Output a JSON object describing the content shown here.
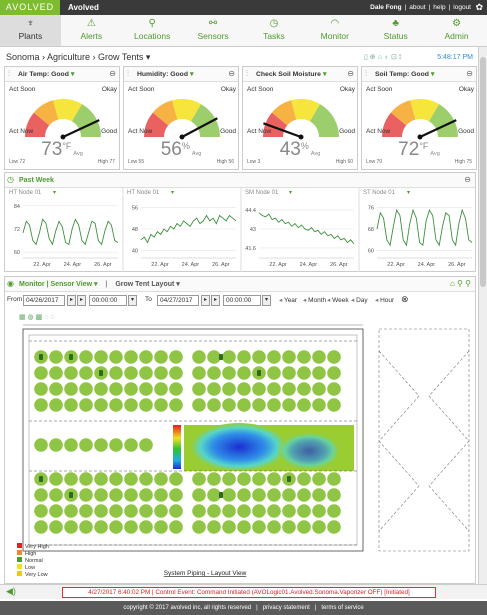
{
  "header": {
    "logo": "AVOLVED",
    "app": "Avolved",
    "user": "Dale Fong",
    "links": [
      "about",
      "help",
      "logout"
    ]
  },
  "nav": [
    "Plants",
    "Alerts",
    "Locations",
    "Sensors",
    "Tasks",
    "Monitor",
    "Status",
    "Admin"
  ],
  "breadcrumb": {
    "path": "Sonoma › Agriculture › Grow Tents ▾",
    "time": "5:48:17 PM"
  },
  "gauge_labels": [
    "Act Soon",
    "Okay",
    "Act Now",
    "Good"
  ],
  "gauges": [
    {
      "title": "Air Temp: Good",
      "value": 73,
      "unit": "°F",
      "avg": "Avg",
      "low": "Low 72",
      "high": "High 77"
    },
    {
      "title": "Humidity: Good",
      "value": 56,
      "unit": "%",
      "avg": "Avg",
      "low": "Low 55",
      "high": "High 56"
    },
    {
      "title": "Check Soil Moisture",
      "value": 43,
      "unit": "%",
      "avg": "Avg",
      "low": "Low 3",
      "high": "High 60"
    },
    {
      "title": "Soil Temp: Good",
      "value": 72,
      "unit": "°F",
      "avg": "Avg",
      "low": "Low 70",
      "high": "High 75"
    }
  ],
  "past_week": {
    "title": "Past Week",
    "charts": [
      {
        "type": "line",
        "title": "HT Node 01",
        "color": "#3d8f3d",
        "ylim": [
          58,
          86
        ],
        "yticks": [
          60,
          72,
          84
        ],
        "x_labels": [
          "22. Apr",
          "24. Apr",
          "26. Apr"
        ],
        "values": [
          70,
          76,
          74,
          66,
          64,
          70,
          77,
          75,
          67,
          64,
          71,
          76,
          73,
          65,
          64,
          72,
          77,
          74,
          66,
          64,
          70,
          76,
          75,
          66,
          64,
          71,
          76,
          74,
          66,
          65
        ]
      },
      {
        "type": "line",
        "title": "HT Node 01",
        "color": "#3d8f3d",
        "ylim": [
          38,
          58
        ],
        "yticks": [
          40,
          48,
          56
        ],
        "x_labels": [
          "22. Apr",
          "24. Apr",
          "26. Apr"
        ],
        "values": [
          44,
          45,
          43,
          46,
          45,
          47,
          46,
          48,
          47,
          49,
          48,
          50,
          49,
          51,
          50,
          49,
          51,
          52,
          50,
          51,
          53,
          51,
          52,
          50,
          53,
          52,
          51,
          53,
          52,
          51
        ]
      },
      {
        "type": "line",
        "title": "SM Node 01",
        "color": "#3d8f3d",
        "ylim": [
          41,
          45
        ],
        "yticks": [
          41.6,
          43,
          44.4
        ],
        "x_labels": [
          "22. Apr",
          "24. Apr",
          "26. Apr"
        ],
        "values": [
          44.2,
          44,
          43.9,
          44.1,
          43.7,
          43.8,
          43.5,
          43.7,
          43.4,
          43.5,
          43.2,
          43.4,
          43.1,
          43.3,
          43,
          42.9,
          43.1,
          42.8,
          42.9,
          42.6,
          42.8,
          42.5,
          42.6,
          42.3,
          42.5,
          42.2,
          42.3,
          42,
          42.2,
          41.9
        ]
      },
      {
        "type": "line",
        "title": "ST Node 01",
        "color": "#3d8f3d",
        "ylim": [
          58,
          78
        ],
        "yticks": [
          60,
          68,
          76
        ],
        "x_labels": [
          "22. Apr",
          "24. Apr",
          "26. Apr"
        ],
        "values": [
          68,
          74,
          72,
          64,
          62,
          69,
          75,
          73,
          64,
          62,
          70,
          75,
          72,
          63,
          62,
          71,
          75,
          73,
          64,
          62,
          69,
          74,
          73,
          64,
          62,
          70,
          75,
          72,
          64,
          63
        ]
      }
    ]
  },
  "monitor": {
    "title": "Monitor | Sensor View ▾",
    "layout": "Grow Tent Layout ▾",
    "from": "From",
    "from_date": "04/26/2017",
    "from_time": "00:00:00",
    "to": "To",
    "to_date": "04/27/2017",
    "to_time": "00:00:00",
    "ranges": [
      "Year",
      "Month",
      "Week",
      "Day",
      "Hour"
    ],
    "legend": [
      {
        "label": "Very High",
        "color": "#d9261c"
      },
      {
        "label": "High",
        "color": "#f08a24"
      },
      {
        "label": "Normal",
        "color": "#4f9a2e"
      },
      {
        "label": "Low",
        "color": "#f2e21b"
      },
      {
        "label": "Very Low",
        "color": "#f5c518"
      }
    ],
    "caption": "System Piping - Layout View"
  },
  "status": "4/27/2017 6:40:02 PM | Control Event: Command Initiated (AVOLogic01.Avolved.Sonoma.Vaporizer OFF) [Initiated]",
  "footer": [
    "copyright © 2017 avolved inc, all rights reserved",
    "privacy statement",
    "terms of service"
  ]
}
